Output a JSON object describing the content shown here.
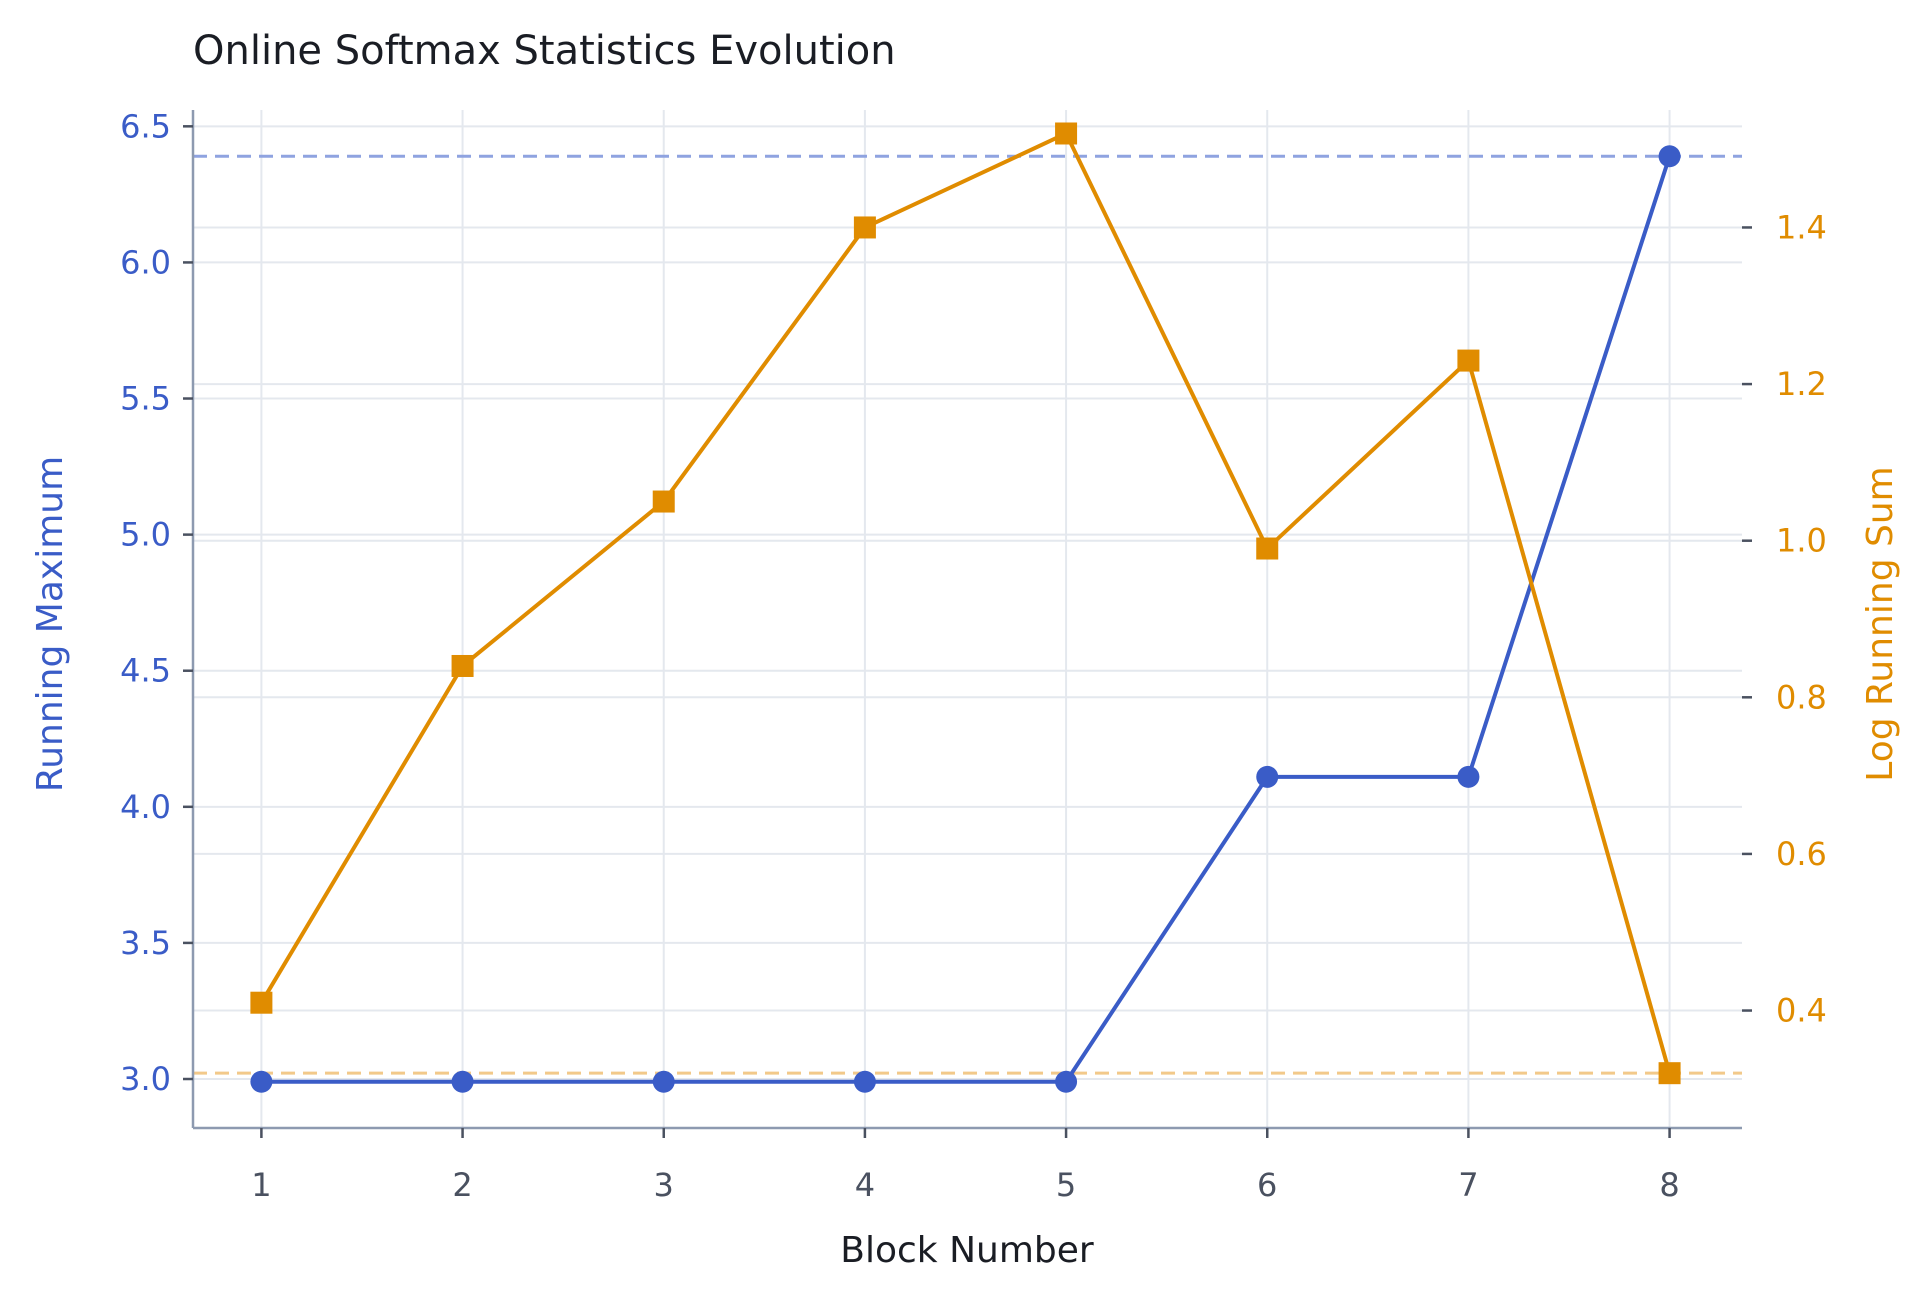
{
  "chart_data": {
    "type": "line",
    "title": "Online Softmax Statistics Evolution",
    "xlabel": "Block Number",
    "x": [
      1,
      2,
      3,
      4,
      5,
      6,
      7,
      8
    ],
    "x_ticks": [
      "1",
      "2",
      "3",
      "4",
      "5",
      "6",
      "7",
      "8"
    ],
    "xlim": [
      0.66,
      8.36
    ],
    "y_left": {
      "label": "Running Maximum",
      "ylim": [
        2.82,
        6.56
      ],
      "ticks": [
        "3.0",
        "3.5",
        "4.0",
        "4.5",
        "5.0",
        "5.5",
        "6.0",
        "6.5"
      ],
      "color": "#3a5cc7"
    },
    "y_right": {
      "label": "Log Running Sum",
      "ylim": [
        0.25,
        1.55
      ],
      "ticks": [
        "0.4",
        "0.6",
        "0.8",
        "1.0",
        "1.2",
        "1.4"
      ],
      "color": "#e08c00"
    },
    "series": [
      {
        "axis": "left",
        "marker": "circle",
        "color": "#3a5cc7",
        "values": [
          2.99,
          2.99,
          2.99,
          2.99,
          2.99,
          4.11,
          4.11,
          6.39
        ]
      },
      {
        "axis": "right",
        "marker": "square",
        "color": "#e08c00",
        "values": [
          0.41,
          0.84,
          1.05,
          1.4,
          1.52,
          0.99,
          1.23,
          0.32
        ]
      }
    ],
    "reference_lines": [
      {
        "axis": "left",
        "value": 6.39,
        "color": "#8fa3e0",
        "style": "dashed"
      },
      {
        "axis": "right",
        "value": 0.32,
        "color": "#f2c98a",
        "style": "dashed"
      }
    ],
    "grid": true
  }
}
